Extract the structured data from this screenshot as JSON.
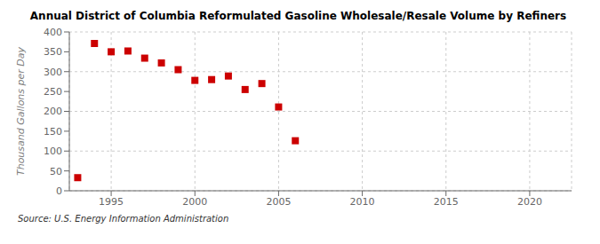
{
  "chart_data": {
    "type": "scatter",
    "title": "Annual District of Columbia Reformulated Gasoline Wholesale/Resale Volume by Refiners",
    "ylabel": "Thousand Gallons per Day",
    "annotations": [
      "Source: U.S. Energy Information Administration"
    ],
    "x": [
      1993,
      1994,
      1995,
      1996,
      1997,
      1998,
      1999,
      2000,
      2001,
      2002,
      2003,
      2004,
      2005,
      2006
    ],
    "values": [
      33,
      371,
      350,
      352,
      334,
      322,
      305,
      278,
      280,
      289,
      255,
      270,
      211,
      126
    ],
    "color": "#cc0000",
    "marker": "square",
    "xlim": [
      1992.5,
      2022.5
    ],
    "ylim": [
      0,
      400
    ],
    "xticks": [
      1995,
      2000,
      2005,
      2010,
      2015,
      2020
    ],
    "yticks": [
      0,
      50,
      100,
      150,
      200,
      250,
      300,
      350,
      400
    ],
    "grid": true
  }
}
